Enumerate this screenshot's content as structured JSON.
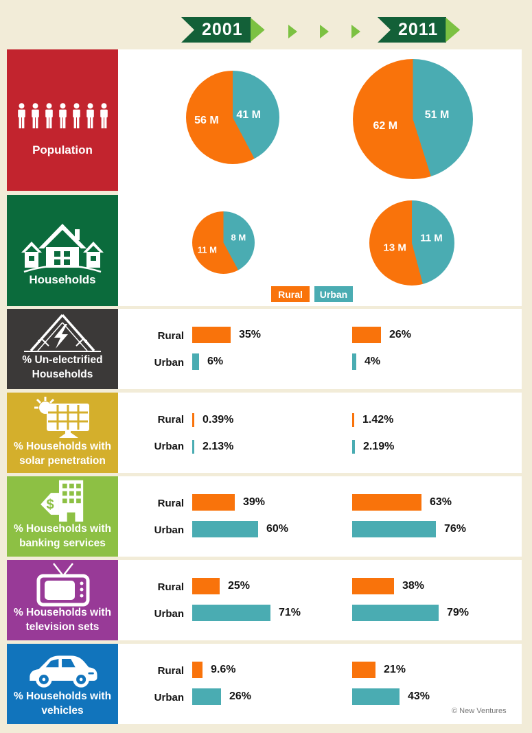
{
  "header": {
    "year_2001": "2001",
    "year_2011": "2011"
  },
  "legend": {
    "rural_label": "Rural",
    "urban_label": "Urban"
  },
  "sidebar": {
    "population": {
      "label": "Population"
    },
    "households": {
      "label": "Households"
    },
    "unelectrified": {
      "line1": "% Un-electrified",
      "line2": "Households"
    },
    "solar": {
      "line1": "% Households with",
      "line2": "solar penetration"
    },
    "banking": {
      "line1": "% Households with",
      "line2": "banking services"
    },
    "television": {
      "line1": "% Households with",
      "line2": "television sets"
    },
    "vehicles": {
      "line1": "% Households with",
      "line2": "vehicles"
    }
  },
  "pies": {
    "population_2001": {
      "rural_label": "56 M",
      "urban_label": "41 M",
      "rural_value": 56,
      "urban_value": 41
    },
    "population_2011": {
      "rural_label": "62 M",
      "urban_label": "51 M",
      "rural_value": 62,
      "urban_value": 51
    },
    "households_2001": {
      "rural_label": "11 M",
      "urban_label": "8 M",
      "rural_value": 11,
      "urban_value": 8
    },
    "households_2011": {
      "rural_label": "13 M",
      "urban_label": "11 M",
      "rural_value": 13,
      "urban_value": 11
    }
  },
  "bars": {
    "unelectrified": {
      "y2001": {
        "rural": {
          "value": 35,
          "label": "35%"
        },
        "urban": {
          "value": 6,
          "label": "6%"
        }
      },
      "y2011": {
        "rural": {
          "value": 26,
          "label": "26%"
        },
        "urban": {
          "value": 4,
          "label": "4%"
        }
      }
    },
    "solar": {
      "y2001": {
        "rural": {
          "value": 0.39,
          "label": "0.39%"
        },
        "urban": {
          "value": 2.13,
          "label": "2.13%"
        }
      },
      "y2011": {
        "rural": {
          "value": 1.42,
          "label": "1.42%"
        },
        "urban": {
          "value": 2.19,
          "label": "2.19%"
        }
      }
    },
    "banking": {
      "y2001": {
        "rural": {
          "value": 39,
          "label": "39%"
        },
        "urban": {
          "value": 60,
          "label": "60%"
        }
      },
      "y2011": {
        "rural": {
          "value": 63,
          "label": "63%"
        },
        "urban": {
          "value": 76,
          "label": "76%"
        }
      }
    },
    "television": {
      "y2001": {
        "rural": {
          "value": 25,
          "label": "25%"
        },
        "urban": {
          "value": 71,
          "label": "71%"
        }
      },
      "y2011": {
        "rural": {
          "value": 38,
          "label": "38%"
        },
        "urban": {
          "value": 79,
          "label": "79%"
        }
      }
    },
    "vehicles": {
      "y2001": {
        "rural": {
          "value": 9.6,
          "label": "9.6%"
        },
        "urban": {
          "value": 26,
          "label": "26%"
        }
      },
      "y2011": {
        "rural": {
          "value": 21,
          "label": "21%"
        },
        "urban": {
          "value": 43,
          "label": "43%"
        }
      }
    }
  },
  "credit": "© New Ventures",
  "colors": {
    "background": "#F2ECD8",
    "panel": "#FFFFFF",
    "rural": "#F9730B",
    "urban": "#4AACB2",
    "banner_dark_green": "#136038",
    "banner_light_green": "#7CC142",
    "population_red": "#C2242E",
    "households_green": "#0B6B3C",
    "unelectrified_gray": "#3B3938",
    "solar_gold": "#D4AF2C",
    "banking_green": "#8DC044",
    "television_purple": "#983A97",
    "vehicles_blue": "#1174BC",
    "text_dark": "#141414",
    "credit_gray": "#777777"
  },
  "chart_data": [
    {
      "type": "pie",
      "title": "Population 2001 (millions)",
      "labels": [
        "Rural",
        "Urban"
      ],
      "values": [
        56,
        41
      ],
      "unit": "M",
      "legend_position": "bottom"
    },
    {
      "type": "pie",
      "title": "Population 2011 (millions)",
      "labels": [
        "Rural",
        "Urban"
      ],
      "values": [
        62,
        51
      ],
      "unit": "M"
    },
    {
      "type": "pie",
      "title": "Households 2001 (millions)",
      "labels": [
        "Rural",
        "Urban"
      ],
      "values": [
        11,
        8
      ],
      "unit": "M"
    },
    {
      "type": "pie",
      "title": "Households 2011 (millions)",
      "labels": [
        "Rural",
        "Urban"
      ],
      "values": [
        13,
        11
      ],
      "unit": "M"
    },
    {
      "type": "bar",
      "title": "% Un-electrified Households",
      "categories": [
        "Rural",
        "Urban"
      ],
      "series": [
        {
          "name": "2001",
          "values": [
            35,
            6
          ]
        },
        {
          "name": "2011",
          "values": [
            26,
            4
          ]
        }
      ],
      "unit": "%"
    },
    {
      "type": "bar",
      "title": "% Households with solar penetration",
      "categories": [
        "Rural",
        "Urban"
      ],
      "series": [
        {
          "name": "2001",
          "values": [
            0.39,
            2.13
          ]
        },
        {
          "name": "2011",
          "values": [
            1.42,
            2.19
          ]
        }
      ],
      "unit": "%"
    },
    {
      "type": "bar",
      "title": "% Households with banking services",
      "categories": [
        "Rural",
        "Urban"
      ],
      "series": [
        {
          "name": "2001",
          "values": [
            39,
            60
          ]
        },
        {
          "name": "2011",
          "values": [
            63,
            76
          ]
        }
      ],
      "unit": "%"
    },
    {
      "type": "bar",
      "title": "% Households with television sets",
      "categories": [
        "Rural",
        "Urban"
      ],
      "series": [
        {
          "name": "2001",
          "values": [
            25,
            71
          ]
        },
        {
          "name": "2011",
          "values": [
            38,
            79
          ]
        }
      ],
      "unit": "%"
    },
    {
      "type": "bar",
      "title": "% Households with vehicles",
      "categories": [
        "Rural",
        "Urban"
      ],
      "series": [
        {
          "name": "2001",
          "values": [
            9.6,
            26
          ]
        },
        {
          "name": "2011",
          "values": [
            21,
            43
          ]
        }
      ],
      "unit": "%"
    }
  ]
}
